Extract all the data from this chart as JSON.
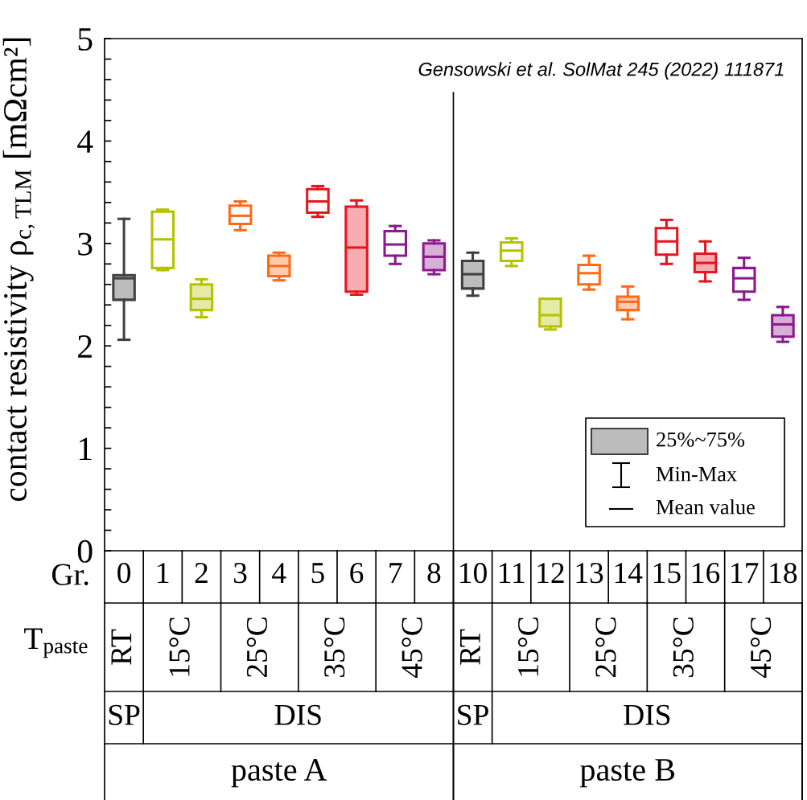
{
  "chart_data": {
    "type": "box",
    "ylabel": "contact resistivity ρ$_{c,TLM}$ [mΩcm²]",
    "categories": [
      "0",
      "1",
      "2",
      "3",
      "4",
      "5",
      "6",
      "7",
      "8",
      "10",
      "11",
      "12",
      "13",
      "14",
      "15",
      "16",
      "17",
      "18"
    ],
    "boxes": [
      {
        "low": 2.06,
        "q1": 2.45,
        "median": 2.66,
        "q3": 2.69,
        "high": 3.24
      },
      {
        "low": 2.74,
        "q1": 2.76,
        "median": 3.04,
        "q3": 3.31,
        "high": 3.33
      },
      {
        "low": 2.28,
        "q1": 2.35,
        "median": 2.46,
        "q3": 2.6,
        "high": 2.65
      },
      {
        "low": 3.13,
        "q1": 3.19,
        "median": 3.27,
        "q3": 3.37,
        "high": 3.41
      },
      {
        "low": 2.64,
        "q1": 2.68,
        "median": 2.78,
        "q3": 2.88,
        "high": 2.91
      },
      {
        "low": 3.26,
        "q1": 3.3,
        "median": 3.41,
        "q3": 3.53,
        "high": 3.56
      },
      {
        "low": 2.5,
        "q1": 2.53,
        "median": 2.96,
        "q3": 3.36,
        "high": 3.42
      },
      {
        "low": 2.8,
        "q1": 2.88,
        "median": 2.99,
        "q3": 3.12,
        "high": 3.17
      },
      {
        "low": 2.7,
        "q1": 2.74,
        "median": 2.87,
        "q3": 3.0,
        "high": 3.03
      },
      {
        "low": 2.49,
        "q1": 2.56,
        "median": 2.7,
        "q3": 2.83,
        "high": 2.91
      },
      {
        "low": 2.78,
        "q1": 2.83,
        "median": 2.93,
        "q3": 3.01,
        "high": 3.05
      },
      {
        "low": 2.16,
        "q1": 2.19,
        "median": 2.3,
        "q3": 2.46,
        "high": 2.46
      },
      {
        "low": 2.55,
        "q1": 2.6,
        "median": 2.71,
        "q3": 2.79,
        "high": 2.88
      },
      {
        "low": 2.26,
        "q1": 2.35,
        "median": 2.43,
        "q3": 2.48,
        "high": 2.58
      },
      {
        "low": 2.8,
        "q1": 2.89,
        "median": 3.02,
        "q3": 3.15,
        "high": 3.23
      },
      {
        "low": 2.63,
        "q1": 2.72,
        "median": 2.81,
        "q3": 2.9,
        "high": 3.02
      },
      {
        "low": 2.45,
        "q1": 2.53,
        "median": 2.66,
        "q3": 2.76,
        "high": 2.86
      },
      {
        "low": 2.04,
        "q1": 2.09,
        "median": 2.21,
        "q3": 2.3,
        "high": 2.38
      }
    ],
    "colors": [
      "#404040",
      "#b5c200",
      "#b5c200",
      "#ff6a1a",
      "#ff6a1a",
      "#e8141e",
      "#e8141e",
      "#8b1a8b",
      "#8b1a8b",
      "#404040",
      "#b5c200",
      "#b5c200",
      "#ff6a1a",
      "#ff6a1a",
      "#e8141e",
      "#e8141e",
      "#8b1a8b",
      "#8b1a8b"
    ],
    "ylim": [
      0,
      5
    ],
    "yticks": [
      0,
      {
        "value": 0.2,
        "label": null
      },
      {
        "value": 0.4,
        "label": null
      },
      {
        "value": 0.6,
        "label": null
      },
      {
        "value": 0.8,
        "label": null
      },
      1,
      {
        "value": 1.2,
        "label": null
      },
      {
        "value": 1.4,
        "label": null
      },
      {
        "value": 1.6,
        "label": null
      },
      {
        "value": 1.8,
        "label": null
      },
      2,
      {
        "value": 2.2,
        "label": null
      },
      {
        "value": 2.4,
        "label": null
      },
      {
        "value": 2.6,
        "label": null
      },
      {
        "value": 2.8,
        "label": null
      },
      3,
      {
        "value": 3.2,
        "label": null
      },
      {
        "value": 3.4,
        "label": null
      },
      {
        "value": 3.6,
        "label": null
      },
      {
        "value": 3.8,
        "label": null
      },
      4,
      {
        "value": 4.2,
        "label": null
      },
      {
        "value": 4.4,
        "label": null
      },
      {
        "value": 4.6,
        "label": null
      },
      {
        "value": 4.8,
        "label": null
      },
      5
    ],
    "grid": false,
    "annotations": [
      "Gensowski et al. SolMat 245 (2022) 111871",
      "25%~75%",
      "Min-Max",
      "Mean value",
      "Gr.",
      "T$_{paste}$",
      "RT",
      "15°C",
      "25°C",
      "35°C",
      "45°C",
      "RT",
      "15°C",
      "25°C",
      "35°C",
      "45°C",
      "SP",
      "DIS",
      "SP",
      "DIS",
      "paste A",
      "paste B"
    ]
  }
}
